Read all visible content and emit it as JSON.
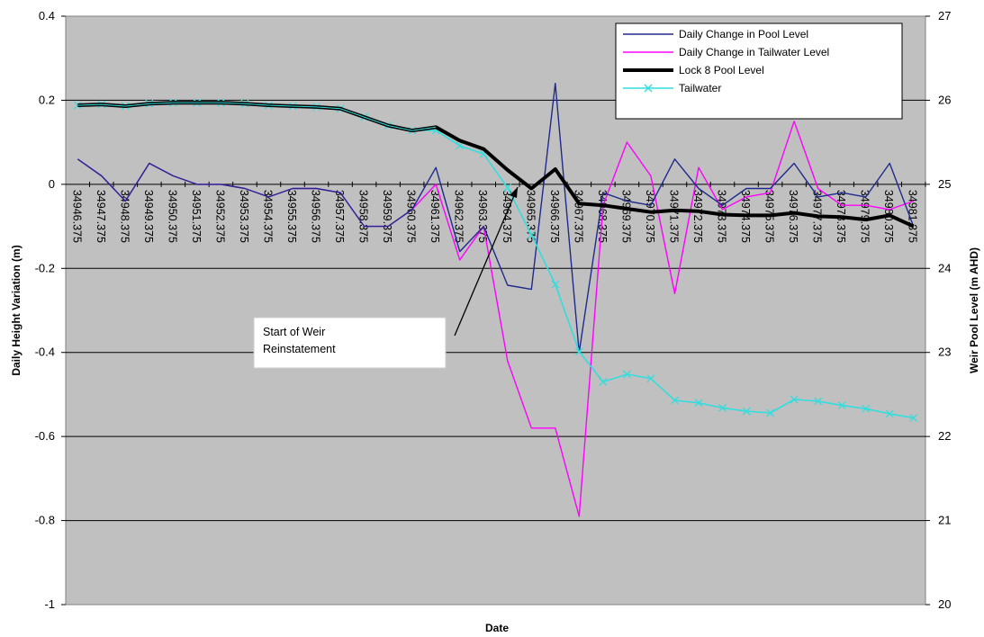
{
  "chart_data": {
    "type": "line",
    "xlabel": "Date",
    "ylabel_left": "Daily Height Variation (m)",
    "ylabel_right": "Weir Pool Level (m AHD)",
    "ylim_left": [
      -1,
      0.4
    ],
    "ylim_right": [
      20,
      27
    ],
    "yticks_left": [
      "0.4",
      "0.2",
      "0",
      "-0.2",
      "-0.4",
      "-0.6",
      "-0.8",
      "-1"
    ],
    "yticks_right": [
      "27",
      "26",
      "25",
      "24",
      "23",
      "22",
      "21",
      "20"
    ],
    "grid": "horizontal",
    "legend_position": "top-right",
    "categories": [
      "34946.375",
      "34947.375",
      "34948.375",
      "34949.375",
      "34950.375",
      "34951.375",
      "34952.375",
      "34953.375",
      "34954.375",
      "34955.375",
      "34956.375",
      "34957.375",
      "34958.375",
      "34959.375",
      "34960.375",
      "34961.375",
      "34962.375",
      "34963.375",
      "34964.375",
      "34965.375",
      "34966.375",
      "34967.375",
      "34968.375",
      "34969.375",
      "34970.375",
      "34971.375",
      "34972.375",
      "34973.375",
      "34974.375",
      "34975.375",
      "34976.375",
      "34977.375",
      "34978.375",
      "34979.375",
      "34980.375",
      "34981.375"
    ],
    "series": [
      {
        "name": "Daily Change in Pool Level",
        "axis": "left",
        "color": "#1f2a8c",
        "values": [
          0.06,
          0.02,
          -0.04,
          0.05,
          0.02,
          0,
          0,
          -0.01,
          -0.03,
          -0.01,
          -0.01,
          -0.02,
          -0.1,
          -0.1,
          -0.06,
          0.04,
          -0.16,
          -0.1,
          -0.24,
          -0.25,
          0.24,
          -0.4,
          -0.02,
          -0.04,
          -0.05,
          0.06,
          -0.01,
          -0.05,
          -0.01,
          -0.01,
          0.05,
          -0.03,
          -0.02,
          -0.03,
          0.05,
          -0.1
        ]
      },
      {
        "name": "Daily Change in Tailwater Level",
        "axis": "left",
        "color": "#ff00ff",
        "values": [
          0.06,
          0.02,
          -0.04,
          0.05,
          0.02,
          0,
          0,
          -0.01,
          -0.03,
          -0.01,
          -0.01,
          -0.02,
          -0.1,
          -0.1,
          -0.06,
          0,
          -0.18,
          -0.1,
          -0.42,
          -0.58,
          -0.58,
          -0.79,
          -0.05,
          0.1,
          0.02,
          -0.26,
          0.04,
          -0.06,
          -0.03,
          -0.02,
          0.15,
          -0.01,
          -0.05,
          -0.05,
          -0.06,
          -0.04
        ]
      },
      {
        "name": "Lock 8 Pool Level",
        "axis": "right",
        "color": "#000000",
        "values": [
          25.94,
          25.95,
          25.93,
          25.96,
          25.97,
          25.97,
          25.97,
          25.96,
          25.94,
          25.93,
          25.92,
          25.9,
          25.8,
          25.7,
          25.64,
          25.68,
          25.52,
          25.42,
          25.17,
          24.95,
          25.18,
          24.77,
          24.75,
          24.71,
          24.67,
          24.69,
          24.68,
          24.64,
          24.63,
          24.63,
          24.66,
          24.62,
          24.61,
          24.58,
          24.63,
          24.5
        ]
      },
      {
        "name": "Tailwater",
        "axis": "right",
        "color": "#33dddd",
        "marker": "x",
        "values": [
          25.94,
          25.95,
          25.93,
          25.96,
          25.97,
          25.97,
          25.97,
          25.96,
          25.94,
          25.93,
          25.92,
          25.9,
          25.8,
          25.7,
          25.64,
          25.64,
          25.46,
          25.36,
          24.96,
          24.4,
          23.81,
          23.01,
          22.65,
          22.74,
          22.69,
          22.43,
          22.4,
          22.34,
          22.3,
          22.28,
          22.44,
          22.42,
          22.37,
          22.33,
          22.27,
          22.22
        ]
      }
    ],
    "annotation": {
      "lines": [
        "Start of Weir",
        "Reinstatement"
      ]
    }
  }
}
